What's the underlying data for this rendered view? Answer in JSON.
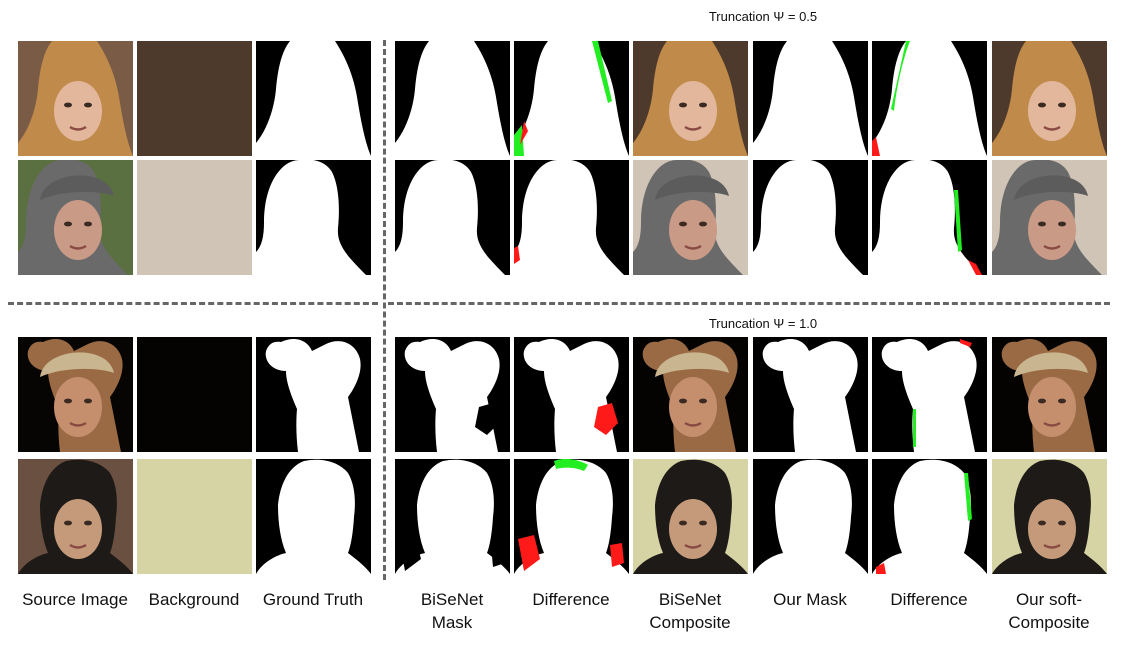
{
  "truncation_labels": [
    "Truncation Ψ = 0.5",
    "Truncation Ψ = 1.0"
  ],
  "column_labels": [
    [
      "Source Image"
    ],
    [
      "Background"
    ],
    [
      "Ground Truth"
    ],
    [
      "BiSeNet",
      "Mask"
    ],
    [
      "Difference"
    ],
    [
      "BiSeNet",
      "Composite"
    ],
    [
      "Our Mask"
    ],
    [
      "Difference"
    ],
    [
      "Our soft-",
      "Composite"
    ]
  ],
  "colors": {
    "difference_missing": "#ff1a1a",
    "difference_extra": "#22ee22",
    "mask_fg": "#ffffff",
    "mask_bg": "#000000",
    "divider": "#666666"
  }
}
